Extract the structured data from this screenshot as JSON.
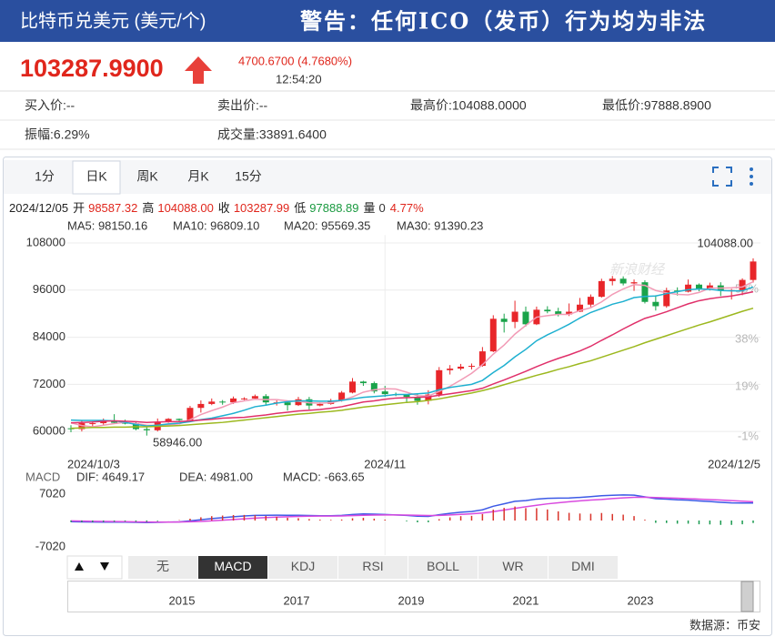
{
  "header": {
    "title": "比特币兑美元 (美元/个)",
    "warning": "警告：任何ICO（发币）行为均为非法"
  },
  "quote": {
    "price": "103287.9900",
    "change": "4700.6700 (4.7680%)",
    "time": "12:54:20"
  },
  "stats": [
    [
      "买入价:--",
      "卖出价:--",
      "最高价:104088.0000",
      "最低价:97888.8900"
    ],
    [
      "振幅:6.29%",
      "成交量:33891.6400"
    ]
  ],
  "period_tabs": [
    "1分",
    "日K",
    "周K",
    "月K",
    "15分"
  ],
  "active_period": 1,
  "ohlc_line": {
    "date": "2024/12/05",
    "items": [
      {
        "label": "开",
        "value": "98587.32",
        "color": "#e0261c"
      },
      {
        "label": "高",
        "value": "104088.00",
        "color": "#e0261c"
      },
      {
        "label": "收",
        "value": "103287.99",
        "color": "#e0261c"
      },
      {
        "label": "低",
        "value": "97888.89",
        "color": "#1a9a40"
      },
      {
        "label": "量",
        "value": "0",
        "color": "#333333"
      }
    ],
    "change": "4.77%",
    "change_color": "#e0261c"
  },
  "chart_data": [
    {
      "type": "candlestick",
      "categories": [
        "2024/10/3",
        null,
        null,
        null,
        null,
        null,
        null,
        null,
        null,
        null,
        null,
        null,
        null,
        null,
        null,
        null,
        null,
        null,
        null,
        null,
        null,
        null,
        null,
        null,
        null,
        null,
        null,
        null,
        null,
        "2024/11",
        null,
        null,
        null,
        null,
        null,
        null,
        null,
        null,
        null,
        null,
        null,
        null,
        null,
        null,
        null,
        null,
        null,
        null,
        null,
        null,
        null,
        null,
        null,
        null,
        null,
        null,
        null,
        null,
        null,
        null,
        null,
        null,
        null,
        "2024/12/5"
      ],
      "open": [
        60800,
        60600,
        62100,
        62100,
        62800,
        62200,
        62100,
        60600,
        60300,
        62400,
        63200,
        62900,
        66000,
        67000,
        67600,
        67400,
        68400,
        68400,
        69000,
        67400,
        67400,
        66700,
        68200,
        66600,
        67000,
        67900,
        69900,
        72700,
        72300,
        70200,
        69500,
        69300,
        68800,
        67800,
        69400,
        75600,
        76000,
        76500,
        76700,
        80400,
        88700,
        87900,
        90500,
        87300,
        91000,
        90600,
        89800,
        90500,
        92300,
        94300,
        98300,
        98900,
        97700,
        98000,
        93000,
        91900,
        95900,
        95600,
        97400,
        96400,
        97200,
        95800,
        96000,
        98587.32
      ],
      "high": [
        61600,
        62900,
        62600,
        63300,
        64400,
        63000,
        62500,
        61300,
        63300,
        63400,
        63300,
        66500,
        67900,
        68400,
        68000,
        68900,
        68700,
        69400,
        69500,
        67900,
        67900,
        68800,
        68800,
        67400,
        68300,
        70300,
        73600,
        72900,
        72700,
        71600,
        69900,
        69400,
        69500,
        70500,
        76400,
        76900,
        77200,
        77300,
        81500,
        89600,
        90000,
        93300,
        91800,
        91800,
        91900,
        91500,
        92600,
        94000,
        94900,
        98900,
        99600,
        99500,
        98700,
        98500,
        94700,
        96600,
        96700,
        98700,
        97700,
        97900,
        98000,
        96300,
        99000,
        104088
      ],
      "low": [
        59800,
        60000,
        61300,
        61700,
        62000,
        61800,
        60300,
        58946,
        60000,
        62200,
        62400,
        62400,
        64800,
        66700,
        66800,
        67000,
        68000,
        68100,
        66600,
        66600,
        65300,
        66500,
        65600,
        66400,
        66800,
        67600,
        69700,
        71600,
        69700,
        68800,
        69000,
        67500,
        66800,
        66900,
        68800,
        74500,
        75600,
        75800,
        76500,
        80200,
        85200,
        86300,
        86700,
        87100,
        90100,
        89300,
        89400,
        90400,
        91700,
        94100,
        97200,
        97200,
        95800,
        92600,
        90800,
        91500,
        94600,
        95400,
        95700,
        95900,
        94500,
        93600,
        94700,
        97888.89
      ],
      "close": [
        60600,
        62100,
        62100,
        62800,
        62200,
        62100,
        60600,
        60300,
        62400,
        63200,
        62900,
        66000,
        67000,
        67600,
        67400,
        68400,
        68400,
        69000,
        67400,
        67400,
        66700,
        68200,
        66600,
        67000,
        67900,
        69900,
        72700,
        72300,
        70200,
        69500,
        69300,
        68800,
        67800,
        69400,
        75600,
        76000,
        76500,
        76700,
        80400,
        88700,
        87900,
        90500,
        87300,
        91000,
        90600,
        89800,
        90500,
        92300,
        94300,
        98300,
        98900,
        97700,
        98000,
        93000,
        91900,
        95900,
        95600,
        97400,
        96400,
        97200,
        95800,
        96000,
        98600,
        103287.99
      ],
      "up_color": "#e8262a",
      "down_color": "#1aa34a",
      "series": [
        {
          "legend": "MA5: 98150.16",
          "color": "#f29bb6",
          "values": [
            62200,
            61500,
            61200,
            61600,
            62000,
            62300,
            62000,
            61600,
            61500,
            61700,
            61900,
            63000,
            64300,
            65300,
            66200,
            67300,
            67800,
            68200,
            68100,
            68100,
            67800,
            67700,
            67300,
            67200,
            67300,
            67900,
            68800,
            70000,
            70600,
            70900,
            70800,
            70000,
            69100,
            69000,
            70200,
            71500,
            73100,
            74800,
            77000,
            79700,
            82000,
            84800,
            87000,
            89100,
            89500,
            89800,
            89800,
            90800,
            91500,
            93000,
            94900,
            96300,
            97400,
            97200,
            95900,
            95300,
            94900,
            94800,
            95400,
            96500,
            96500,
            96600,
            96800,
            98150.16
          ]
        },
        {
          "legend": "MA10: 96809.10",
          "color": "#1eb0d0",
          "values": [
            62900,
            62800,
            62800,
            62800,
            62700,
            62300,
            61800,
            61400,
            61600,
            61900,
            62100,
            62500,
            63000,
            63400,
            64000,
            64600,
            65400,
            66300,
            66700,
            67200,
            67600,
            67800,
            67800,
            67700,
            67700,
            67900,
            68300,
            68700,
            68900,
            69100,
            69400,
            69400,
            69600,
            69800,
            70600,
            71200,
            71600,
            72000,
            73000,
            75000,
            76800,
            79000,
            80900,
            83100,
            84600,
            85900,
            87300,
            88900,
            90300,
            91300,
            92400,
            93100,
            94100,
            94400,
            94500,
            95100,
            95600,
            96100,
            96300,
            96200,
            95900,
            95800,
            95800,
            96809.1
          ]
        },
        {
          "legend": "MA20: 95569.35",
          "color": "#e0306a",
          "values": [
            62200,
            62300,
            62400,
            62600,
            62700,
            62600,
            62500,
            62300,
            62400,
            62500,
            62500,
            62700,
            62900,
            63100,
            63400,
            63500,
            63600,
            63900,
            64200,
            64600,
            64900,
            65200,
            65400,
            65600,
            65900,
            66300,
            66900,
            67500,
            67800,
            68200,
            68500,
            68600,
            68700,
            68800,
            69200,
            69600,
            70000,
            70400,
            71000,
            72100,
            73100,
            74200,
            75300,
            76500,
            77600,
            78600,
            79500,
            80500,
            81700,
            83200,
            84600,
            86100,
            87500,
            88800,
            89600,
            90500,
            91500,
            92500,
            93300,
            93800,
            94200,
            94500,
            95000,
            95569.35
          ]
        },
        {
          "legend": "MA30: 91390.23",
          "color": "#9cb81e",
          "values": [
            60800,
            60900,
            61000,
            61000,
            61100,
            61100,
            61200,
            61200,
            61300,
            61400,
            61500,
            61700,
            61900,
            62100,
            62300,
            62600,
            62900,
            63200,
            63500,
            63800,
            64100,
            64400,
            64600,
            64900,
            65100,
            65400,
            65800,
            66200,
            66500,
            66800,
            67100,
            67400,
            67600,
            67900,
            68300,
            68800,
            69300,
            69800,
            70400,
            71100,
            71900,
            72700,
            73500,
            74300,
            75000,
            75800,
            76500,
            77300,
            78000,
            78900,
            79800,
            80700,
            81600,
            82600,
            83500,
            84400,
            85300,
            86200,
            87100,
            87900,
            88800,
            89700,
            90600,
            91390.23
          ]
        }
      ],
      "ylim": [
        54000,
        110000
      ],
      "yticks": [
        60000,
        72000,
        84000,
        96000,
        108000
      ],
      "y2lim": [
        -8.3,
        79.8
      ],
      "y2ticks": [
        {
          "value": -1,
          "label": "-1%"
        },
        {
          "value": 19,
          "label": "19%"
        },
        {
          "value": 38,
          "label": "38%"
        },
        {
          "value": 58,
          "label": "58%"
        }
      ],
      "grid": true,
      "annotations": [
        "104088.00",
        "58946.00"
      ],
      "watermark": "新浪财经"
    },
    {
      "type": "macd",
      "label": "MACD",
      "series": [
        {
          "legend": "DIF: 4649.17",
          "color": "#3d5ae6",
          "values": [
            -300,
            -350,
            -400,
            -420,
            -430,
            -430,
            -500,
            -560,
            -500,
            -420,
            -350,
            -100,
            200,
            500,
            750,
            1000,
            1200,
            1350,
            1400,
            1420,
            1380,
            1400,
            1330,
            1280,
            1270,
            1350,
            1600,
            1750,
            1700,
            1600,
            1480,
            1350,
            1150,
            1100,
            1550,
            1900,
            2200,
            2400,
            2850,
            3800,
            4450,
            5100,
            5300,
            5700,
            5900,
            5950,
            6000,
            6150,
            6350,
            6600,
            6700,
            6800,
            6750,
            6300,
            5800,
            5700,
            5500,
            5400,
            5200,
            5050,
            4850,
            4700,
            4650,
            4649.17
          ]
        },
        {
          "legend": "DEA: 4981.00",
          "color": "#d94adf",
          "values": [
            -100,
            -150,
            -200,
            -240,
            -280,
            -310,
            -350,
            -390,
            -410,
            -410,
            -400,
            -340,
            -230,
            -80,
            90,
            270,
            460,
            640,
            790,
            920,
            1010,
            1090,
            1140,
            1170,
            1190,
            1220,
            1300,
            1390,
            1450,
            1480,
            1480,
            1450,
            1390,
            1330,
            1370,
            1480,
            1620,
            1780,
            1990,
            2350,
            2770,
            3240,
            3650,
            4060,
            4430,
            4730,
            4980,
            5220,
            5450,
            5600,
            5830,
            6020,
            6160,
            6190,
            6110,
            6030,
            5920,
            5820,
            5700,
            5570,
            5430,
            5280,
            5150,
            4981
          ]
        },
        {
          "legend": "MACD: -663.65",
          "color": "#b8322a",
          "kind": "bar",
          "values": [
            -400,
            -400,
            -400,
            -360,
            -300,
            -240,
            -300,
            -340,
            -180,
            -20,
            100,
            480,
            860,
            1160,
            1320,
            1460,
            1480,
            1420,
            1220,
            1000,
            740,
            620,
            380,
            220,
            160,
            260,
            600,
            720,
            500,
            240,
            0,
            -200,
            -480,
            -460,
            360,
            840,
            1160,
            1240,
            1720,
            2900,
            3360,
            3720,
            3300,
            3280,
            2940,
            2440,
            2040,
            1860,
            1800,
            2000,
            1740,
            1560,
            1180,
            220,
            -620,
            -660,
            -840,
            -840,
            -1000,
            -1040,
            -1160,
            -1160,
            -1000,
            -663.65
          ]
        }
      ],
      "up_color": "#d9342b",
      "down_color": "#1a9a50",
      "ylim": [
        -9200,
        9680
      ],
      "yticks": [
        7020,
        -7020
      ]
    }
  ],
  "indicator_tabs": [
    "无",
    "MACD",
    "KDJ",
    "RSI",
    "BOLL",
    "WR",
    "DMI"
  ],
  "active_indicator": 1,
  "navigator_years": [
    "2015",
    "2017",
    "2019",
    "2021",
    "2023"
  ],
  "source": "数据源：币安"
}
